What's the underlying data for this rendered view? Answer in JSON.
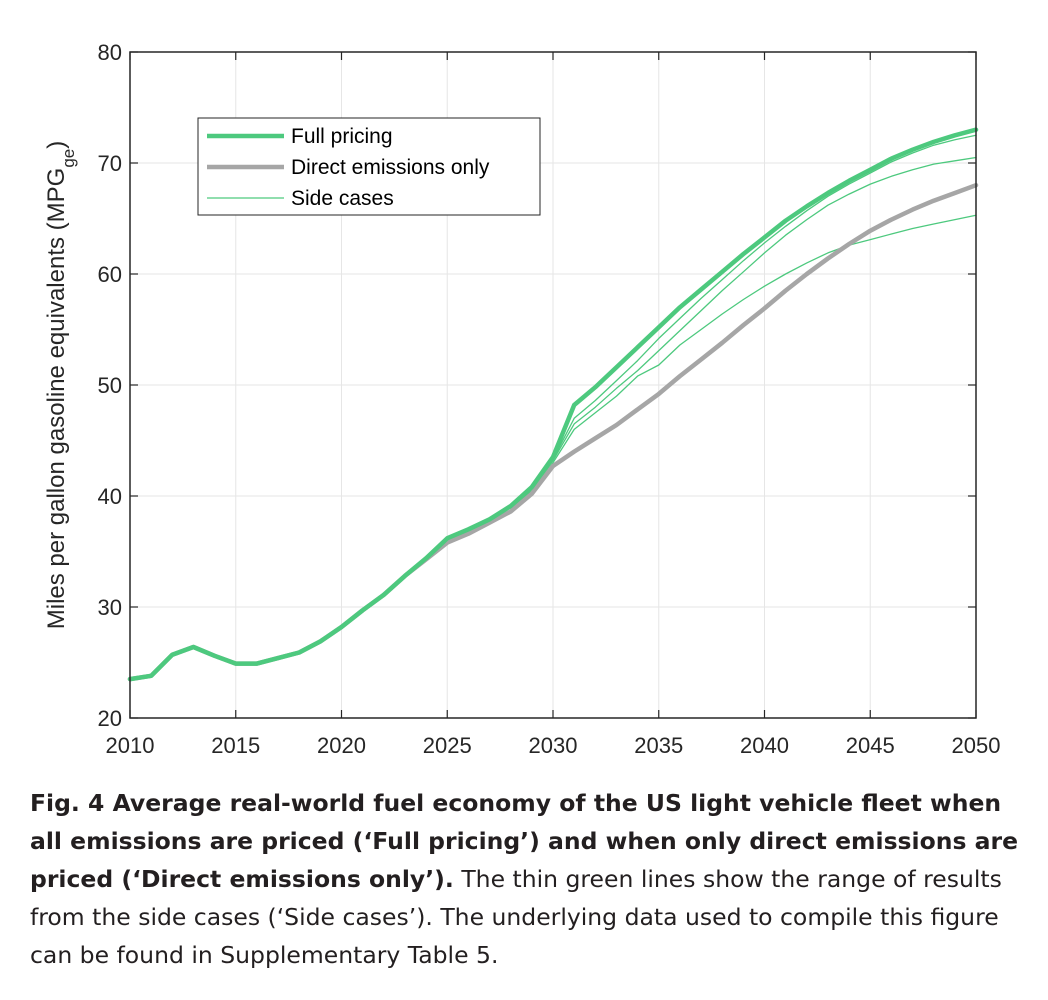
{
  "chart_data": {
    "type": "line",
    "ylabel": "Miles per gallon gasoline equivalents (MPG",
    "ylabel_sub": "ge",
    "ylabel_close": ")",
    "xlim": [
      2010,
      2050
    ],
    "ylim": [
      20,
      80
    ],
    "x_ticks": [
      2010,
      2015,
      2020,
      2025,
      2030,
      2035,
      2040,
      2045,
      2050
    ],
    "y_ticks": [
      20,
      30,
      40,
      50,
      60,
      70,
      80
    ],
    "grid": true,
    "legend_position": "top-left",
    "legend": [
      {
        "name": "Full pricing",
        "color": "#4dc97e",
        "style": "thick"
      },
      {
        "name": "Direct emissions only",
        "color": "#a6a6a6",
        "style": "thick"
      },
      {
        "name": "Side cases",
        "color": "#4dc97e",
        "style": "thin"
      }
    ],
    "series": [
      {
        "name": "Full pricing",
        "color": "#4dc97e",
        "style": "thick",
        "x": [
          2010,
          2011,
          2012,
          2013,
          2014,
          2015,
          2016,
          2017,
          2018,
          2019,
          2020,
          2021,
          2022,
          2023,
          2024,
          2025,
          2026,
          2027,
          2028,
          2029,
          2030,
          2031,
          2032,
          2033,
          2034,
          2035,
          2036,
          2037,
          2038,
          2039,
          2040,
          2041,
          2042,
          2043,
          2044,
          2045,
          2046,
          2047,
          2048,
          2049,
          2050
        ],
        "y": [
          23.5,
          23.8,
          25.7,
          26.4,
          25.6,
          24.9,
          24.9,
          25.4,
          25.9,
          26.9,
          28.2,
          29.7,
          31.1,
          32.8,
          34.4,
          36.2,
          37.0,
          37.9,
          39.1,
          40.8,
          43.5,
          48.2,
          49.8,
          51.6,
          53.4,
          55.2,
          57.0,
          58.6,
          60.2,
          61.8,
          63.3,
          64.8,
          66.1,
          67.3,
          68.4,
          69.4,
          70.4,
          71.2,
          71.9,
          72.5,
          73.0
        ]
      },
      {
        "name": "Direct emissions only",
        "color": "#a6a6a6",
        "style": "thick",
        "x": [
          2010,
          2011,
          2012,
          2013,
          2014,
          2015,
          2016,
          2017,
          2018,
          2019,
          2020,
          2021,
          2022,
          2023,
          2024,
          2025,
          2026,
          2027,
          2028,
          2029,
          2030,
          2031,
          2032,
          2033,
          2034,
          2035,
          2036,
          2037,
          2038,
          2039,
          2040,
          2041,
          2042,
          2043,
          2044,
          2045,
          2046,
          2047,
          2048,
          2049,
          2050
        ],
        "y": [
          23.5,
          23.8,
          25.7,
          26.4,
          25.6,
          24.9,
          24.9,
          25.4,
          25.9,
          26.9,
          28.2,
          29.7,
          31.1,
          32.8,
          34.3,
          35.8,
          36.6,
          37.6,
          38.6,
          40.2,
          42.7,
          44.0,
          45.2,
          46.4,
          47.8,
          49.2,
          50.8,
          52.3,
          53.8,
          55.4,
          56.9,
          58.5,
          60.0,
          61.4,
          62.7,
          63.9,
          64.9,
          65.8,
          66.6,
          67.3,
          68.0
        ]
      },
      {
        "name": "Side case 1",
        "color": "#4dc97e",
        "style": "thin",
        "x": [
          2028,
          2029,
          2030,
          2031,
          2032,
          2033,
          2034,
          2035,
          2036,
          2037,
          2038,
          2039,
          2040,
          2041,
          2042,
          2043,
          2044,
          2045,
          2046,
          2047,
          2048,
          2049,
          2050
        ],
        "y": [
          39.0,
          40.6,
          43.3,
          47.0,
          48.6,
          50.4,
          52.2,
          54.2,
          56.0,
          57.8,
          59.5,
          61.2,
          62.8,
          64.3,
          65.7,
          67.0,
          68.1,
          69.1,
          70.1,
          70.9,
          71.6,
          72.1,
          72.5
        ]
      },
      {
        "name": "Side case 2",
        "color": "#4dc97e",
        "style": "thin",
        "x": [
          2028,
          2029,
          2030,
          2031,
          2032,
          2033,
          2034,
          2035,
          2036,
          2037,
          2038,
          2039,
          2040,
          2041,
          2042,
          2043,
          2044,
          2045,
          2046,
          2047,
          2048,
          2049,
          2050
        ],
        "y": [
          38.9,
          40.5,
          43.2,
          46.5,
          48.0,
          49.7,
          51.3,
          53.1,
          54.9,
          56.7,
          58.5,
          60.2,
          61.9,
          63.5,
          64.9,
          66.2,
          67.2,
          68.1,
          68.8,
          69.4,
          69.9,
          70.2,
          70.5
        ]
      },
      {
        "name": "Side case 3",
        "color": "#4dc97e",
        "style": "thin",
        "x": [
          2028,
          2029,
          2030,
          2031,
          2032,
          2033,
          2034,
          2035,
          2036,
          2037,
          2038,
          2039,
          2040,
          2041,
          2042,
          2043,
          2044,
          2045,
          2046,
          2047,
          2048,
          2049,
          2050
        ],
        "y": [
          38.9,
          40.4,
          43.0,
          46.0,
          47.5,
          49.0,
          50.8,
          51.8,
          53.6,
          55.0,
          56.4,
          57.7,
          58.9,
          60.0,
          61.0,
          61.9,
          62.6,
          63.1,
          63.6,
          64.1,
          64.5,
          64.9,
          65.3
        ]
      }
    ]
  },
  "caption": {
    "title": "Fig. 4 Average real-world fuel economy of the US light vehicle fleet when all emissions are priced (‘Full pricing’) and when only direct emissions are priced (‘Direct emissions only’).",
    "body": " The thin green lines show the range of results from the side cases (‘Side cases’). The underlying data used to compile this figure can be found in Supplementary Table 5."
  }
}
